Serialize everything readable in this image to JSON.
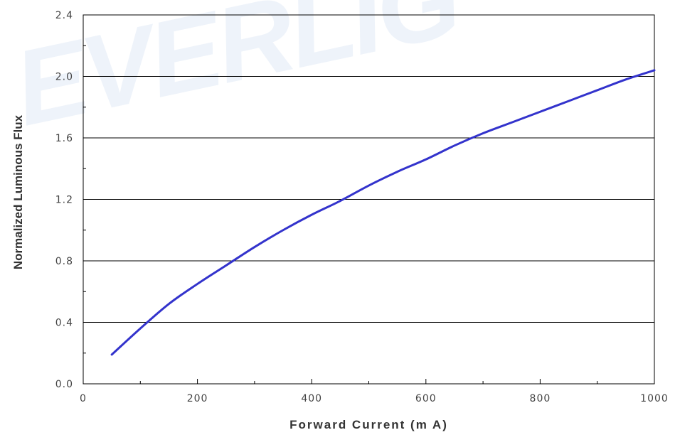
{
  "watermark": "EVERLIG",
  "chart_data": {
    "type": "line",
    "title": "",
    "xlabel": "Forward Current (m A)",
    "ylabel": "Normalized Luminous Flux",
    "xlim": [
      0,
      1000
    ],
    "ylim": [
      0.0,
      2.4
    ],
    "x_ticks": [
      0,
      200,
      400,
      600,
      800,
      1000
    ],
    "x_tick_labels": [
      "0",
      "200",
      "400",
      "600",
      "800",
      "1000"
    ],
    "y_ticks": [
      0.0,
      0.4,
      0.8,
      1.2,
      1.6,
      2.0,
      2.4
    ],
    "y_tick_labels": [
      "0.0",
      "0.4",
      "0.8",
      "1.2",
      "1.6",
      "2.0",
      "2.4"
    ],
    "grid": "horizontal",
    "series": [
      {
        "color": "#3333cc",
        "x": [
          50,
          100,
          150,
          200,
          250,
          300,
          350,
          400,
          450,
          500,
          550,
          600,
          650,
          700,
          750,
          800,
          850,
          900,
          950,
          1000
        ],
        "y": [
          0.19,
          0.36,
          0.52,
          0.65,
          0.77,
          0.89,
          1.0,
          1.1,
          1.19,
          1.29,
          1.38,
          1.46,
          1.55,
          1.63,
          1.7,
          1.77,
          1.84,
          1.91,
          1.98,
          2.04
        ]
      }
    ]
  }
}
